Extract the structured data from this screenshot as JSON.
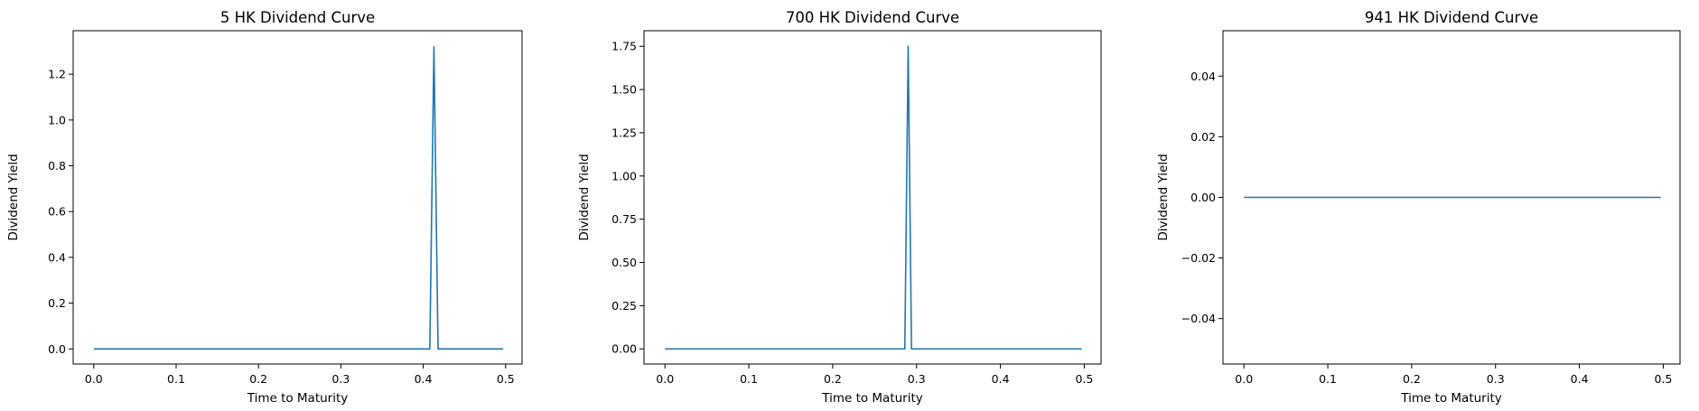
{
  "colors": {
    "series": "#1f77b4",
    "axes": "#000000",
    "background": "#ffffff"
  },
  "chart_data": [
    {
      "type": "line",
      "title": "5 HK Dividend Curve",
      "xlabel": "Time to Maturity",
      "ylabel": "Dividend Yield",
      "xlim": [
        -0.025,
        0.52
      ],
      "ylim": [
        -0.066,
        1.39
      ],
      "xticks": [
        0.0,
        0.1,
        0.2,
        0.3,
        0.4,
        0.5
      ],
      "xtick_labels": [
        "0.0",
        "0.1",
        "0.2",
        "0.3",
        "0.4",
        "0.5"
      ],
      "yticks": [
        0.0,
        0.2,
        0.4,
        0.6,
        0.8,
        1.0,
        1.2
      ],
      "ytick_labels": [
        "0.0",
        "0.2",
        "0.4",
        "0.6",
        "0.8",
        "1.0",
        "1.2"
      ],
      "grid": false,
      "series": [
        {
          "x": [
            0.0,
            0.408,
            0.413,
            0.418,
            0.497
          ],
          "y": [
            0.0,
            0.0,
            1.32,
            0.0,
            0.0
          ]
        }
      ]
    },
    {
      "type": "line",
      "title": "700 HK Dividend Curve",
      "xlabel": "Time to Maturity",
      "ylabel": "Dividend Yield",
      "xlim": [
        -0.025,
        0.52
      ],
      "ylim": [
        -0.0875,
        1.84
      ],
      "xticks": [
        0.0,
        0.1,
        0.2,
        0.3,
        0.4,
        0.5
      ],
      "xtick_labels": [
        "0.0",
        "0.1",
        "0.2",
        "0.3",
        "0.4",
        "0.5"
      ],
      "yticks": [
        0.0,
        0.25,
        0.5,
        0.75,
        1.0,
        1.25,
        1.5,
        1.75
      ],
      "ytick_labels": [
        "0.00",
        "0.25",
        "0.50",
        "0.75",
        "1.00",
        "1.25",
        "1.50",
        "1.75"
      ],
      "grid": false,
      "series": [
        {
          "x": [
            0.0,
            0.286,
            0.29,
            0.294,
            0.497
          ],
          "y": [
            0.0,
            0.0,
            1.75,
            0.0,
            0.0
          ]
        }
      ]
    },
    {
      "type": "line",
      "title": "941 HK Dividend Curve",
      "xlabel": "Time to Maturity",
      "ylabel": "Dividend Yield",
      "xlim": [
        -0.025,
        0.52
      ],
      "ylim": [
        -0.055,
        0.055
      ],
      "xticks": [
        0.0,
        0.1,
        0.2,
        0.3,
        0.4,
        0.5
      ],
      "xtick_labels": [
        "0.0",
        "0.1",
        "0.2",
        "0.3",
        "0.4",
        "0.5"
      ],
      "yticks": [
        -0.04,
        -0.02,
        0.0,
        0.02,
        0.04
      ],
      "ytick_labels": [
        "−0.04",
        "−0.02",
        "0.00",
        "0.02",
        "0.04"
      ],
      "grid": false,
      "series": [
        {
          "x": [
            0.0,
            0.497
          ],
          "y": [
            0.0,
            0.0
          ]
        }
      ]
    }
  ]
}
